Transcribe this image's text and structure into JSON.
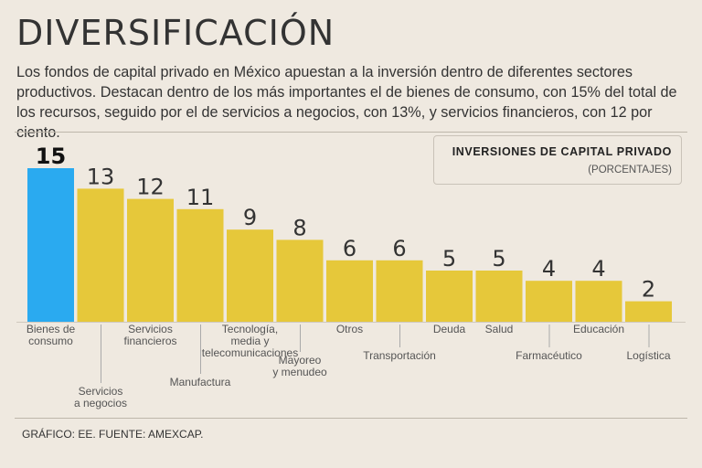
{
  "header": {
    "title": "DIVERSIFICACIÓN",
    "description": "Los fondos de capital privado en México apuestan a la inversión dentro de diferentes sectores productivos. Destacan dentro de los más importantes el de bienes de consumo, con 15% del total de los recursos, seguido por el de servicios a negocios, con 13%, y servicios financieros, con 12 por ciento."
  },
  "legend": {
    "title": "INVERSIONES DE CAPITAL PRIVADO",
    "subtitle": "(PORCENTAJES)"
  },
  "footer": {
    "credit": "GRÁFICO: EE. FUENTE: AMEXCAP."
  },
  "colors": {
    "highlight": "#2aaaf0",
    "bar": "#e6c83a"
  },
  "chart_data": {
    "type": "bar",
    "title": "INVERSIONES DE CAPITAL PRIVADO",
    "subtitle": "(PORCENTAJES)",
    "xlabel": "",
    "ylabel": "",
    "ylim": [
      0,
      15
    ],
    "categories": [
      "Bienes de consumo",
      "Servicios a negocios",
      "Servicios financieros",
      "Manufactura",
      "Tecnología, media y telecomunicaciones",
      "Mayoreo y menudeo",
      "Otros",
      "Transportación",
      "Deuda",
      "Salud",
      "Farmacéutico",
      "Educación",
      "Logística"
    ],
    "category_lines": [
      [
        "Bienes de",
        "consumo"
      ],
      [
        "Servicios",
        "a negocios"
      ],
      [
        "Servicios",
        "financieros"
      ],
      [
        "Manufactura"
      ],
      [
        "Tecnología,",
        "media y",
        "telecomunicaciones"
      ],
      [
        "Mayoreo",
        "y menudeo"
      ],
      [
        "Otros"
      ],
      [
        "Transportación"
      ],
      [
        "Deuda"
      ],
      [
        "Salud"
      ],
      [
        "Farmacéutico"
      ],
      [
        "Educación"
      ],
      [
        "Logística"
      ]
    ],
    "label_tiers": [
      0,
      2,
      0,
      3,
      0,
      4,
      0,
      1,
      0,
      0,
      1,
      0,
      1
    ],
    "values": [
      15,
      13,
      12,
      11,
      9,
      8,
      6,
      6,
      5,
      5,
      4,
      4,
      2
    ],
    "highlight_index": 0,
    "grid": false
  }
}
